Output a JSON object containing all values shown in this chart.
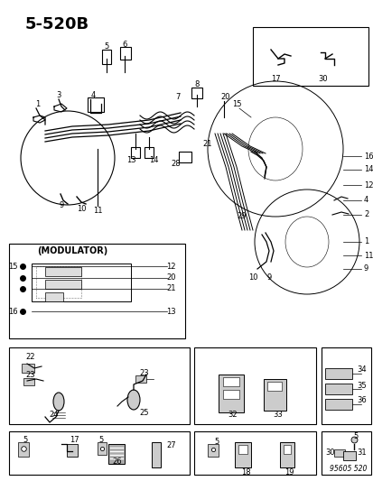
{
  "title": "5-520B",
  "background_color": "#ffffff",
  "watermark": "95605 520",
  "modulator_label": "(MODULATOR)",
  "fig_width": 4.14,
  "fig_height": 5.33,
  "dpi": 100
}
